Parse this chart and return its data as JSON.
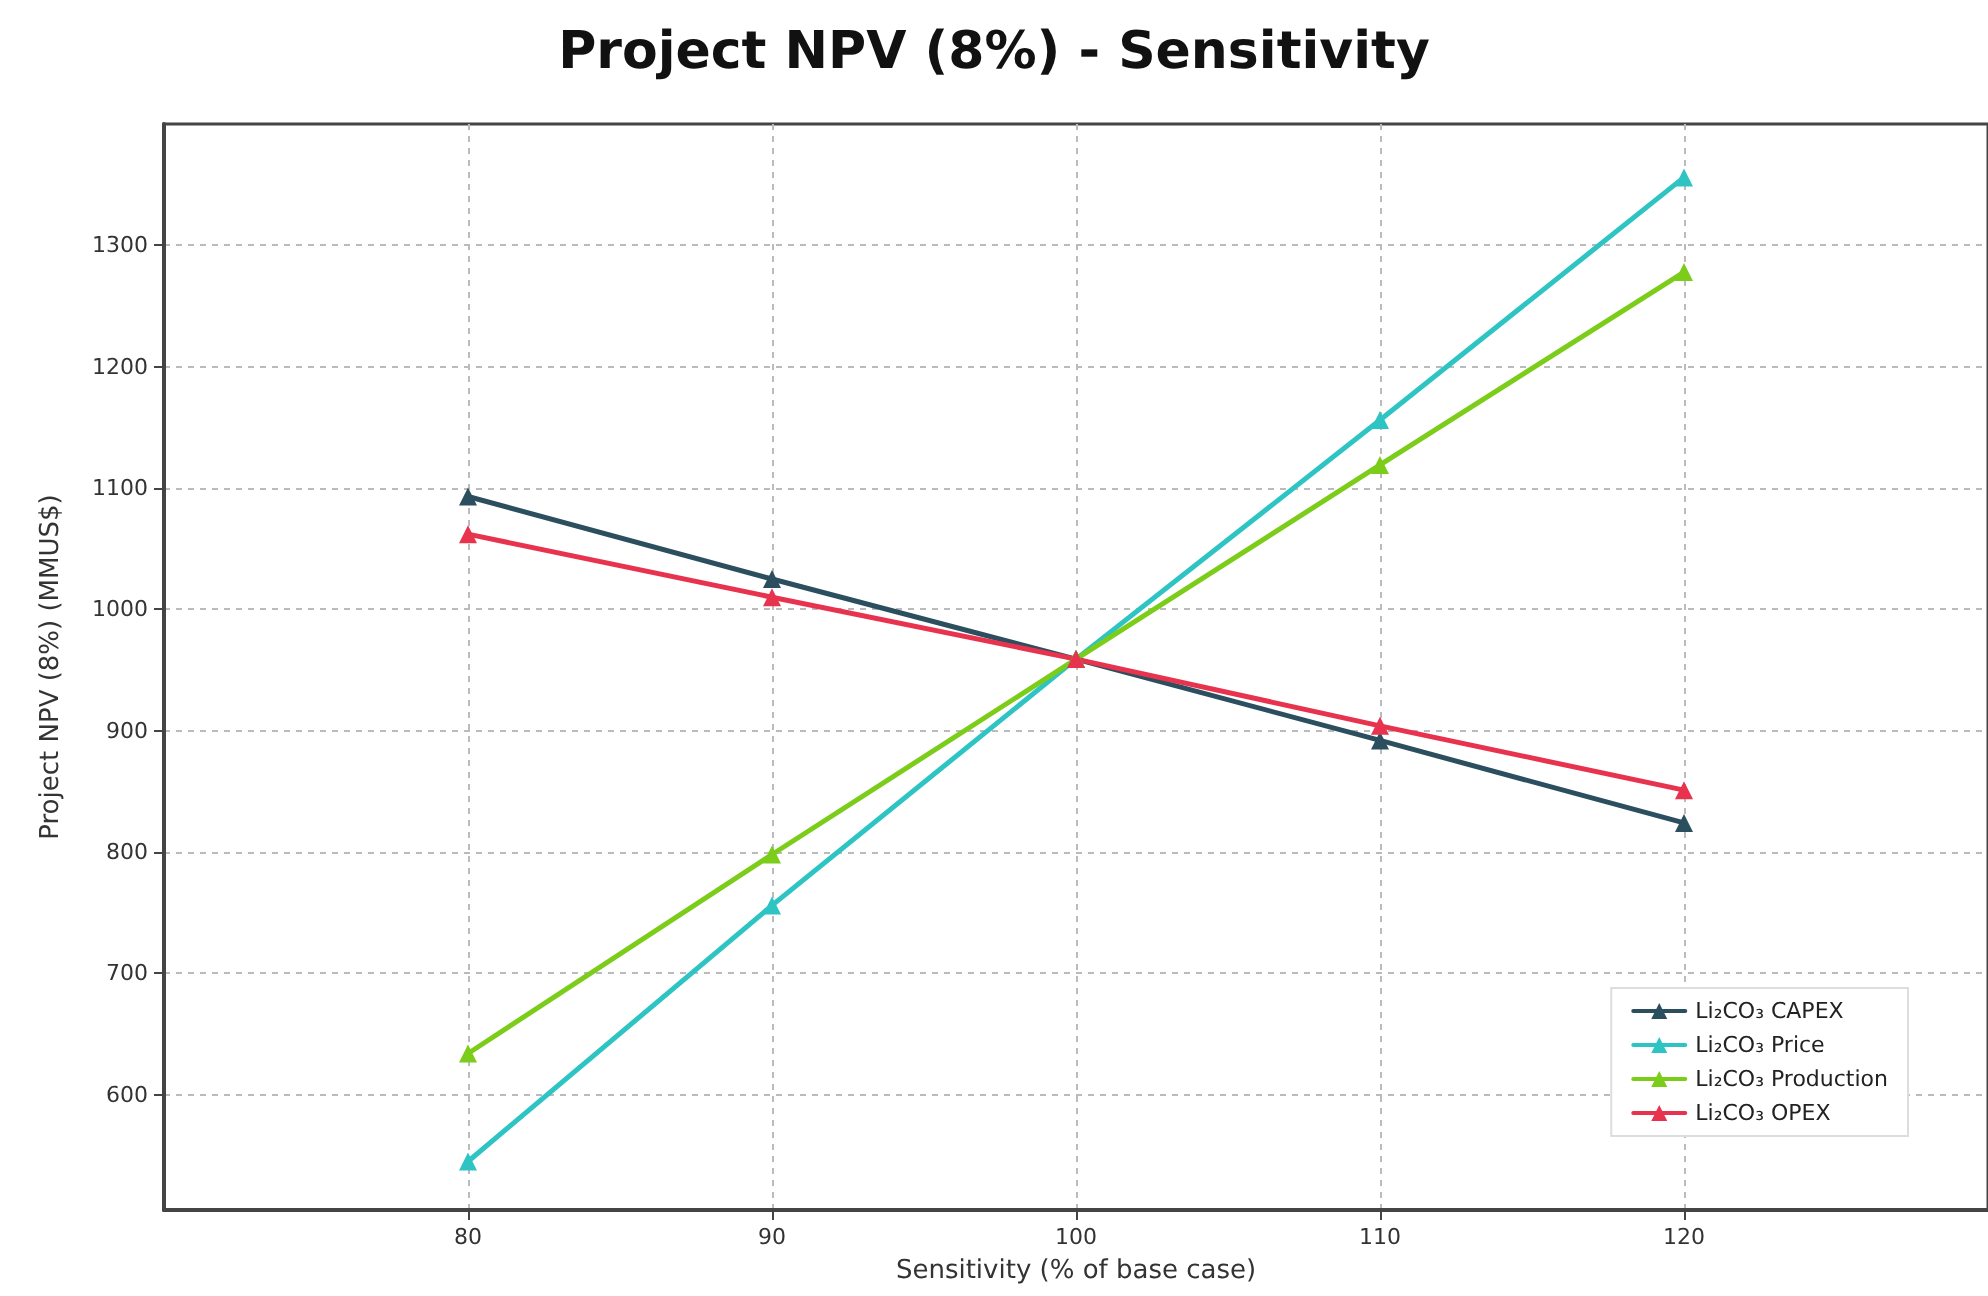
{
  "chart_data": {
    "type": "line",
    "title": "Project NPV (8%) - Sensitivity",
    "xlabel": "Sensitivity (% of base case)",
    "ylabel": "Project NPV (8%) (MMUS$)",
    "x": [
      80,
      90,
      100,
      110,
      120
    ],
    "series": [
      {
        "name": "Li₂CO₃ CAPEX",
        "color": "#2b4f5e",
        "values": [
          1093,
          1025,
          959,
          892,
          824
        ]
      },
      {
        "name": "Li₂CO₃ Price",
        "color": "#2ec4c4",
        "values": [
          545,
          756,
          959,
          1156,
          1356
        ]
      },
      {
        "name": "Li₂CO₃ Production",
        "color": "#7ccc1a",
        "values": [
          634,
          798,
          959,
          1119,
          1278
        ]
      },
      {
        "name": "Li₂CO₃ OPEX",
        "color": "#e8334f",
        "values": [
          1062,
          1010,
          959,
          904,
          851
        ]
      }
    ],
    "xlim": [
      70,
      130
    ],
    "xticks": [
      80,
      90,
      100,
      110,
      120
    ],
    "ylim": [
      505,
      1400
    ],
    "yticks": [
      600,
      700,
      800,
      900,
      1000,
      1100,
      1200,
      1300
    ],
    "grid": true,
    "legend": "bottom right",
    "marker": "triangle",
    "line_style": "solid"
  }
}
